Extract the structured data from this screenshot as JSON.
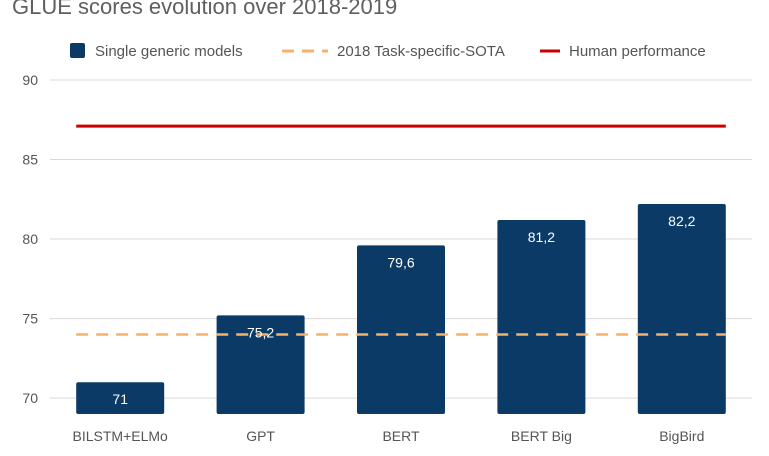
{
  "chart_data": {
    "type": "bar",
    "title": "GLUE scores evolution over 2018-2019",
    "categories": [
      "BILSTM+ELMo",
      "GPT",
      "BERT",
      "BERT Big",
      "BigBird"
    ],
    "series": [
      {
        "name": "Single generic models",
        "values": [
          71,
          75.2,
          79.6,
          81.2,
          82.2
        ],
        "labels": [
          "71",
          "75,2",
          "79,6",
          "81,2",
          "82,2"
        ],
        "color": "#0b3a66",
        "style": "bar"
      },
      {
        "name": "2018 Task-specific-SOTA",
        "value": 74,
        "color": "#f6b26b",
        "style": "dashed-line"
      },
      {
        "name": "Human performance",
        "value": 87.1,
        "color": "#cc0000",
        "style": "solid-line"
      }
    ],
    "yticks": [
      70,
      75,
      80,
      85,
      90
    ],
    "ylim": [
      69,
      90
    ],
    "grid": true,
    "legend_position": "top"
  }
}
